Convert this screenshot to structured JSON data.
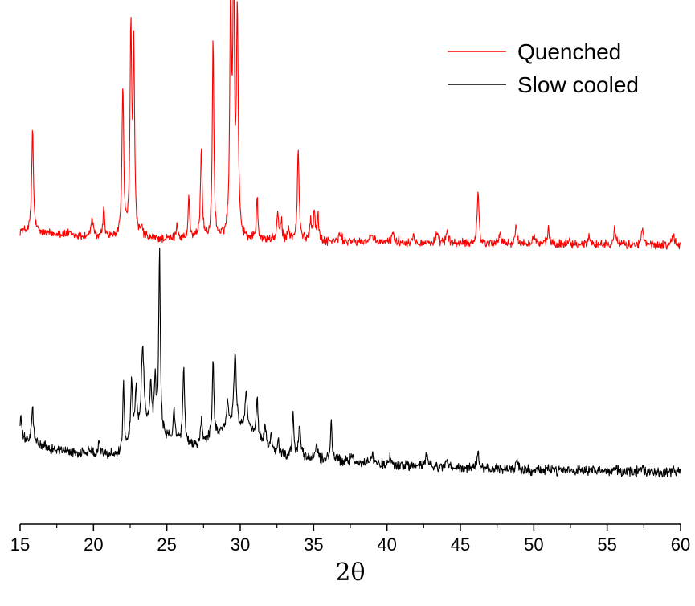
{
  "chart_data": {
    "type": "line",
    "title": "",
    "xlabel": "2θ",
    "ylabel": "",
    "xlim": [
      15,
      60
    ],
    "xticks": [
      15,
      20,
      25,
      30,
      35,
      40,
      45,
      50,
      55,
      60
    ],
    "xtick_labels": [
      "15",
      "20",
      "25",
      "30",
      "35",
      "40",
      "45",
      "50",
      "55",
      "60"
    ],
    "y_axis_shown": false,
    "grid": false,
    "legend": "top-right",
    "series": [
      {
        "name": "Quenched",
        "color": "#ff0000",
        "baseline": [
          [
            15.0,
            0.56
          ],
          [
            20.0,
            0.46
          ],
          [
            25.0,
            0.43
          ],
          [
            30.0,
            0.42
          ],
          [
            35.0,
            0.4
          ],
          [
            40.0,
            0.38
          ],
          [
            45.0,
            0.36
          ],
          [
            50.0,
            0.35
          ],
          [
            55.0,
            0.34
          ],
          [
            60.0,
            0.33
          ]
        ],
        "peaks": [
          [
            15.85,
            1.72,
            0.07
          ],
          [
            17.6,
            0.04,
            0.1
          ],
          [
            18.3,
            0.03,
            0.1
          ],
          [
            19.9,
            0.32,
            0.08
          ],
          [
            20.7,
            0.45,
            0.07
          ],
          [
            22.0,
            2.5,
            0.07
          ],
          [
            22.55,
            3.45,
            0.07
          ],
          [
            22.75,
            3.05,
            0.06
          ],
          [
            23.3,
            0.14,
            0.08
          ],
          [
            25.7,
            0.26,
            0.07
          ],
          [
            26.5,
            0.7,
            0.06
          ],
          [
            27.35,
            1.52,
            0.07
          ],
          [
            28.15,
            3.37,
            0.06
          ],
          [
            29.35,
            4.1,
            0.07
          ],
          [
            29.55,
            4.45,
            0.06
          ],
          [
            29.8,
            3.7,
            0.07
          ],
          [
            31.15,
            0.72,
            0.06
          ],
          [
            32.55,
            0.42,
            0.07
          ],
          [
            32.8,
            0.32,
            0.06
          ],
          [
            33.3,
            0.22,
            0.06
          ],
          [
            33.95,
            1.5,
            0.07
          ],
          [
            34.8,
            0.35,
            0.07
          ],
          [
            35.05,
            0.5,
            0.07
          ],
          [
            35.3,
            0.4,
            0.06
          ],
          [
            36.8,
            0.12,
            0.1
          ],
          [
            38.9,
            0.12,
            0.1
          ],
          [
            40.4,
            0.18,
            0.08
          ],
          [
            41.8,
            0.12,
            0.1
          ],
          [
            43.4,
            0.13,
            0.1
          ],
          [
            44.1,
            0.22,
            0.08
          ],
          [
            46.2,
            0.9,
            0.07
          ],
          [
            47.7,
            0.18,
            0.08
          ],
          [
            48.8,
            0.26,
            0.08
          ],
          [
            50.0,
            0.14,
            0.1
          ],
          [
            51.0,
            0.26,
            0.07
          ],
          [
            52.4,
            0.08,
            0.1
          ],
          [
            53.8,
            0.14,
            0.1
          ],
          [
            55.5,
            0.3,
            0.08
          ],
          [
            57.4,
            0.27,
            0.08
          ],
          [
            59.5,
            0.2,
            0.08
          ]
        ]
      },
      {
        "name": "Slow cooled",
        "color": "#000000",
        "baseline": [
          [
            15.0,
            0.55
          ],
          [
            17.0,
            0.4
          ],
          [
            20.0,
            0.3
          ],
          [
            22.0,
            0.32
          ],
          [
            23.5,
            0.75
          ],
          [
            25.0,
            0.55
          ],
          [
            27.0,
            0.42
          ],
          [
            29.0,
            0.7
          ],
          [
            30.5,
            0.7
          ],
          [
            32.5,
            0.3
          ],
          [
            35.0,
            0.25
          ],
          [
            40.0,
            0.16
          ],
          [
            45.0,
            0.11
          ],
          [
            50.0,
            0.08
          ],
          [
            55.0,
            0.06
          ],
          [
            60.0,
            0.05
          ]
        ],
        "peaks": [
          [
            15.05,
            0.35,
            0.06
          ],
          [
            15.85,
            0.55,
            0.07
          ],
          [
            19.8,
            0.1,
            0.15
          ],
          [
            20.4,
            0.18,
            0.1
          ],
          [
            22.05,
            1.05,
            0.06
          ],
          [
            22.6,
            0.9,
            0.07
          ],
          [
            22.9,
            0.7,
            0.07
          ],
          [
            23.35,
            1.2,
            0.1
          ],
          [
            23.9,
            0.65,
            0.07
          ],
          [
            24.2,
            0.75,
            0.07
          ],
          [
            24.5,
            2.75,
            0.06
          ],
          [
            25.5,
            0.42,
            0.08
          ],
          [
            26.15,
            1.15,
            0.07
          ],
          [
            27.35,
            0.35,
            0.08
          ],
          [
            28.15,
            1.2,
            0.06
          ],
          [
            29.15,
            0.4,
            0.07
          ],
          [
            29.65,
            1.1,
            0.1
          ],
          [
            30.4,
            0.55,
            0.07
          ],
          [
            31.15,
            0.55,
            0.07
          ],
          [
            31.7,
            0.25,
            0.07
          ],
          [
            32.1,
            0.18,
            0.07
          ],
          [
            32.6,
            0.2,
            0.07
          ],
          [
            33.6,
            0.7,
            0.06
          ],
          [
            34.05,
            0.45,
            0.08
          ],
          [
            35.2,
            0.25,
            0.08
          ],
          [
            36.2,
            0.6,
            0.06
          ],
          [
            37.6,
            0.12,
            0.1
          ],
          [
            39.0,
            0.14,
            0.1
          ],
          [
            40.2,
            0.1,
            0.1
          ],
          [
            42.7,
            0.16,
            0.12
          ],
          [
            44.1,
            0.1,
            0.1
          ],
          [
            46.2,
            0.26,
            0.07
          ],
          [
            48.8,
            0.12,
            0.1
          ],
          [
            51.0,
            0.05,
            0.1
          ],
          [
            55.5,
            0.07,
            0.12
          ],
          [
            57.4,
            0.05,
            0.1
          ],
          [
            59.5,
            0.06,
            0.08
          ]
        ]
      }
    ]
  }
}
